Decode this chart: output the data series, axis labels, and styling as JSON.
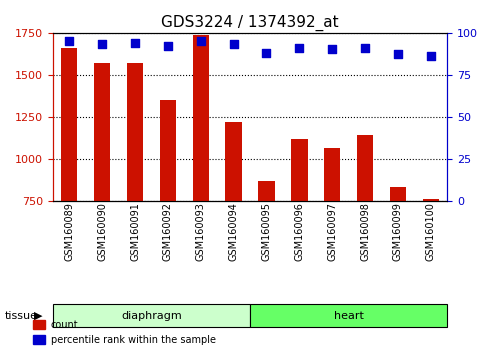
{
  "title": "GDS3224 / 1374392_at",
  "categories": [
    "GSM160089",
    "GSM160090",
    "GSM160091",
    "GSM160092",
    "GSM160093",
    "GSM160094",
    "GSM160095",
    "GSM160096",
    "GSM160097",
    "GSM160098",
    "GSM160099",
    "GSM160100"
  ],
  "counts": [
    1660,
    1570,
    1570,
    1350,
    1735,
    1220,
    870,
    1120,
    1065,
    1140,
    830,
    760
  ],
  "percentiles": [
    95,
    93,
    94,
    92,
    95,
    93,
    88,
    91,
    90,
    91,
    87,
    86
  ],
  "bar_color": "#cc1100",
  "dot_color": "#0000cc",
  "ylim_left": [
    750,
    1750
  ],
  "yticks_left": [
    750,
    1000,
    1250,
    1500,
    1750
  ],
  "ylim_right": [
    0,
    100
  ],
  "yticks_right": [
    0,
    25,
    50,
    75,
    100
  ],
  "n_diaphragm": 6,
  "n_heart": 6,
  "diaphragm_color": "#ccffcc",
  "heart_color": "#66ff66",
  "left_axis_color": "#cc1100",
  "right_axis_color": "#0000cc",
  "plot_bg": "#ffffff",
  "xtick_bg": "#e0e0e0",
  "legend_count_label": "count",
  "legend_pct_label": "percentile rank within the sample",
  "tissue_label": "tissue"
}
